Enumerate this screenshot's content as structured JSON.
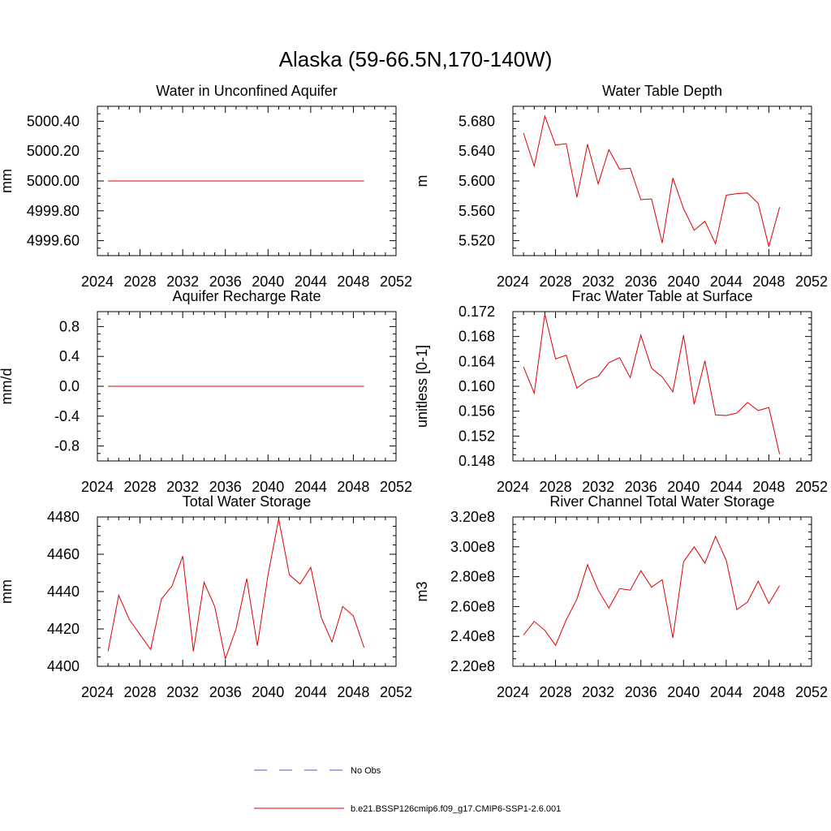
{
  "figure": {
    "title": "Alaska (59-66.5N,170-140W)"
  },
  "legend": {
    "obs_label": "No Obs",
    "obs_color": "#5050c8",
    "model_label": "b.e21.BSSP126cmip6.f09_g17.CMIP6-SSP1-2.6.001",
    "model_color": "#e00000"
  },
  "chart_data": [
    {
      "type": "line",
      "title": "Water in Unconfined Aquifer",
      "ylabel": "mm",
      "xlabel": "",
      "xlim": [
        2024,
        2052
      ],
      "ylim": [
        4999.5,
        5000.5
      ],
      "xticks": [
        2024,
        2028,
        2032,
        2036,
        2040,
        2044,
        2048,
        2052
      ],
      "xtick_labels": [
        "2024",
        "2028",
        "2032",
        "2036",
        "2040",
        "2044",
        "2048",
        "2052"
      ],
      "yticks": [
        4999.6,
        4999.8,
        5000.0,
        5000.2,
        5000.4
      ],
      "ytick_labels": [
        "4999.60",
        "4999.80",
        "5000.00",
        "5000.20",
        "5000.40"
      ],
      "grid": false,
      "series": [
        {
          "color": "#e00000",
          "x": [
            2025,
            2026,
            2027,
            2028,
            2029,
            2030,
            2031,
            2032,
            2033,
            2034,
            2035,
            2036,
            2037,
            2038,
            2039,
            2040,
            2041,
            2042,
            2043,
            2044,
            2045,
            2046,
            2047,
            2048,
            2049
          ],
          "values": [
            5000,
            5000,
            5000,
            5000,
            5000,
            5000,
            5000,
            5000,
            5000,
            5000,
            5000,
            5000,
            5000,
            5000,
            5000,
            5000,
            5000,
            5000,
            5000,
            5000,
            5000,
            5000,
            5000,
            5000,
            5000
          ]
        }
      ]
    },
    {
      "type": "line",
      "title": "Water Table Depth",
      "ylabel": "m",
      "xlabel": "",
      "xlim": [
        2024,
        2052
      ],
      "ylim": [
        5.5,
        5.7
      ],
      "xticks": [
        2024,
        2028,
        2032,
        2036,
        2040,
        2044,
        2048,
        2052
      ],
      "xtick_labels": [
        "2024",
        "2028",
        "2032",
        "2036",
        "2040",
        "2044",
        "2048",
        "2052"
      ],
      "yticks": [
        5.52,
        5.56,
        5.6,
        5.64,
        5.68
      ],
      "ytick_labels": [
        "5.520",
        "5.560",
        "5.600",
        "5.640",
        "5.680"
      ],
      "grid": false,
      "series": [
        {
          "color": "#e00000",
          "x": [
            2025,
            2026,
            2027,
            2028,
            2029,
            2030,
            2031,
            2032,
            2033,
            2034,
            2035,
            2036,
            2037,
            2038,
            2039,
            2040,
            2041,
            2042,
            2043,
            2044,
            2045,
            2046,
            2047,
            2048,
            2049
          ],
          "values": [
            5.664,
            5.62,
            5.687,
            5.648,
            5.65,
            5.578,
            5.649,
            5.596,
            5.642,
            5.616,
            5.617,
            5.575,
            5.576,
            5.517,
            5.604,
            5.563,
            5.534,
            5.546,
            5.516,
            5.581,
            5.583,
            5.584,
            5.57,
            5.512,
            5.565
          ]
        }
      ]
    },
    {
      "type": "line",
      "title": "Aquifer Recharge Rate",
      "ylabel": "mm/d",
      "xlabel": "",
      "xlim": [
        2024,
        2052
      ],
      "ylim": [
        -1.0,
        1.0
      ],
      "xticks": [
        2024,
        2028,
        2032,
        2036,
        2040,
        2044,
        2048,
        2052
      ],
      "xtick_labels": [
        "2024",
        "2028",
        "2032",
        "2036",
        "2040",
        "2044",
        "2048",
        "2052"
      ],
      "yticks": [
        -0.8,
        -0.4,
        0.0,
        0.4,
        0.8
      ],
      "ytick_labels": [
        "-0.8",
        "-0.4",
        "0.0",
        "0.4",
        "0.8"
      ],
      "grid": false,
      "series": [
        {
          "color": "#e00000",
          "x": [
            2025,
            2026,
            2027,
            2028,
            2029,
            2030,
            2031,
            2032,
            2033,
            2034,
            2035,
            2036,
            2037,
            2038,
            2039,
            2040,
            2041,
            2042,
            2043,
            2044,
            2045,
            2046,
            2047,
            2048,
            2049
          ],
          "values": [
            0,
            0,
            0,
            0,
            0,
            0,
            0,
            0,
            0,
            0,
            0,
            0,
            0,
            0,
            0,
            0,
            0,
            0,
            0,
            0,
            0,
            0,
            0,
            0,
            0
          ]
        }
      ]
    },
    {
      "type": "line",
      "title": "Frac Water Table at Surface",
      "ylabel": "unitless [0-1]",
      "xlabel": "",
      "xlim": [
        2024,
        2052
      ],
      "ylim": [
        0.148,
        0.172
      ],
      "xticks": [
        2024,
        2028,
        2032,
        2036,
        2040,
        2044,
        2048,
        2052
      ],
      "xtick_labels": [
        "2024",
        "2028",
        "2032",
        "2036",
        "2040",
        "2044",
        "2048",
        "2052"
      ],
      "yticks": [
        0.148,
        0.152,
        0.156,
        0.16,
        0.164,
        0.168,
        0.172
      ],
      "ytick_labels": [
        "0.148",
        "0.152",
        "0.156",
        "0.160",
        "0.164",
        "0.168",
        "0.172"
      ],
      "grid": false,
      "series": [
        {
          "color": "#e00000",
          "x": [
            2025,
            2026,
            2027,
            2028,
            2029,
            2030,
            2031,
            2032,
            2033,
            2034,
            2035,
            2036,
            2037,
            2038,
            2039,
            2040,
            2041,
            2042,
            2043,
            2044,
            2045,
            2046,
            2047,
            2048,
            2049
          ],
          "values": [
            0.1631,
            0.1589,
            0.1716,
            0.1644,
            0.165,
            0.1597,
            0.161,
            0.1616,
            0.1638,
            0.1646,
            0.1614,
            0.1682,
            0.1629,
            0.1615,
            0.1591,
            0.1682,
            0.1571,
            0.1641,
            0.1554,
            0.1553,
            0.1557,
            0.1574,
            0.1561,
            0.1566,
            0.1491
          ]
        }
      ]
    },
    {
      "type": "line",
      "title": "Total Water Storage",
      "ylabel": "mm",
      "xlabel": "",
      "xlim": [
        2024,
        2052
      ],
      "ylim": [
        4400,
        4480
      ],
      "xticks": [
        2024,
        2028,
        2032,
        2036,
        2040,
        2044,
        2048,
        2052
      ],
      "xtick_labels": [
        "2024",
        "2028",
        "2032",
        "2036",
        "2040",
        "2044",
        "2048",
        "2052"
      ],
      "yticks": [
        4400,
        4420,
        4440,
        4460,
        4480
      ],
      "ytick_labels": [
        "4400",
        "4420",
        "4440",
        "4460",
        "4480"
      ],
      "grid": false,
      "series": [
        {
          "color": "#e00000",
          "x": [
            2025,
            2026,
            2027,
            2028,
            2029,
            2030,
            2031,
            2032,
            2033,
            2034,
            2035,
            2036,
            2037,
            2038,
            2039,
            2040,
            2041,
            2042,
            2043,
            2044,
            2045,
            2046,
            2047,
            2048,
            2049
          ],
          "values": [
            4408,
            4438,
            4425,
            4417,
            4409,
            4436,
            4443,
            4459,
            4408,
            4445,
            4432,
            4404,
            4420,
            4447,
            4411,
            4449,
            4479,
            4449,
            4444,
            4453,
            4426,
            4413,
            4432,
            4427,
            4410
          ]
        }
      ]
    },
    {
      "type": "line",
      "title": "River Channel Total Water Storage",
      "ylabel": "m3",
      "xlabel": "",
      "xlim": [
        2024,
        2052
      ],
      "ylim": [
        220000000,
        320000000
      ],
      "xticks": [
        2024,
        2028,
        2032,
        2036,
        2040,
        2044,
        2048,
        2052
      ],
      "xtick_labels": [
        "2024",
        "2028",
        "2032",
        "2036",
        "2040",
        "2044",
        "2048",
        "2052"
      ],
      "yticks": [
        220000000,
        240000000,
        260000000,
        280000000,
        300000000,
        320000000
      ],
      "ytick_labels": [
        "2.20e8",
        "2.40e8",
        "2.60e8",
        "2.80e8",
        "3.00e8",
        "3.20e8"
      ],
      "grid": false,
      "series": [
        {
          "color": "#e00000",
          "x": [
            2025,
            2026,
            2027,
            2028,
            2029,
            2030,
            2031,
            2032,
            2033,
            2034,
            2035,
            2036,
            2037,
            2038,
            2039,
            2040,
            2041,
            2042,
            2043,
            2044,
            2045,
            2046,
            2047,
            2048,
            2049
          ],
          "values": [
            241000000,
            250000000,
            244000000,
            234000000,
            251000000,
            265000000,
            288000000,
            271000000,
            259000000,
            272000000,
            271000000,
            284000000,
            273000000,
            278000000,
            239000000,
            290000000,
            300000000,
            289000000,
            307000000,
            291000000,
            258000000,
            263000000,
            277000000,
            262000000,
            274000000
          ]
        }
      ]
    }
  ]
}
